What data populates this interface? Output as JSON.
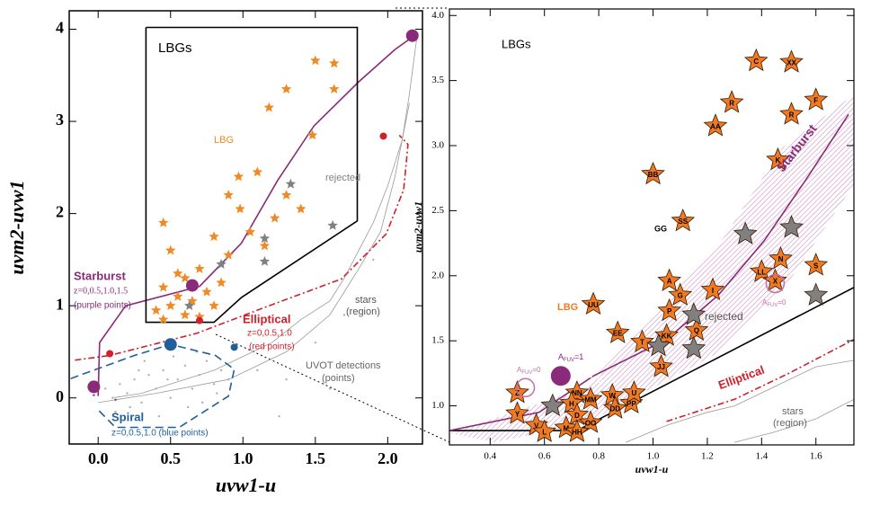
{
  "chart_data": [
    {
      "type": "scatter",
      "xlabel": "uvw1-u",
      "ylabel": "uvm2-uvw1",
      "xlim": [
        -0.2,
        2.24
      ],
      "ylim": [
        -0.5,
        4.2
      ],
      "xticks": [
        {
          "value": 0,
          "label": "0.0"
        },
        0.5,
        {
          "value": 1,
          "label": "1.0"
        },
        1.5,
        {
          "value": 2,
          "label": "2.0"
        }
      ],
      "yticks": [
        0,
        1,
        2,
        3,
        4
      ],
      "annotations": [
        "LBGs",
        "LBG",
        "rejected",
        "Starburst",
        "z=0,0.5,1.0,1.5",
        "(purple points)",
        "Elliptical",
        "z=0,0.5,1.0",
        "(red points)",
        "Spiral",
        "z=0,0.5,1.0 (blue points)",
        "stars",
        "(region)",
        "UVOT detections",
        "(points)"
      ],
      "series": [
        {
          "style": "line",
          "color": "#9a9a9a",
          "x": [
            0.1,
            0.3,
            0.5,
            0.8,
            1.0,
            1.2,
            1.4,
            1.6,
            1.7,
            1.8,
            1.9,
            2.0,
            2.1,
            2.15,
            2.2
          ],
          "y": [
            0.0,
            0.05,
            0.15,
            0.3,
            0.45,
            0.6,
            0.85,
            1.05,
            1.3,
            1.6,
            1.9,
            2.3,
            2.8,
            3.3,
            3.9
          ]
        },
        {
          "style": "line",
          "color": "#9a9a9a",
          "x": [
            0.0,
            0.4,
            0.9,
            1.3,
            1.6,
            1.8,
            1.95,
            2.05,
            2.15
          ],
          "y": [
            -0.05,
            0.05,
            0.2,
            0.5,
            0.9,
            1.4,
            1.8,
            2.4,
            3.2
          ]
        },
        {
          "style": "dot",
          "color": "#b0b0b0",
          "x": [
            0.05,
            0.1,
            0.15,
            0.2,
            0.25,
            0.3,
            0.35,
            0.4,
            0.45,
            0.5,
            0.55,
            0.6,
            0.65,
            0.7,
            0.75,
            0.8,
            0.85,
            0.9,
            0.12,
            0.22,
            0.32,
            0.42,
            0.52,
            0.62,
            0.72,
            0.82,
            0.28,
            0.48,
            0.68,
            1.1,
            1.3,
            1.5,
            1.7,
            1.9,
            1.25,
            1.6
          ],
          "y": [
            0.1,
            0.0,
            0.15,
            0.05,
            0.2,
            -0.05,
            0.25,
            0.1,
            0.3,
            0.0,
            0.2,
            0.35,
            0.1,
            0.25,
            0.4,
            0.15,
            0.3,
            0.2,
            -0.15,
            -0.1,
            0.4,
            -0.2,
            0.45,
            -0.1,
            -0.05,
            0.05,
            0.3,
            0.2,
            0.5,
            0.3,
            0.2,
            0.6,
            0.9,
            1.5,
            -0.2,
            0.1
          ]
        },
        {
          "style": "dashed",
          "color": "#1f5f9a",
          "x": [
            -0.19,
            0.25,
            0.5,
            0.81,
            0.94,
            0.9,
            0.56,
            0.12,
            0.0
          ],
          "y": [
            0.21,
            0.46,
            0.58,
            0.46,
            0.31,
            0.02,
            -0.32,
            -0.32,
            -0.13
          ]
        },
        {
          "style": "dashdot",
          "color": "#d0202a",
          "x": [
            -0.16,
            0.08,
            0.68,
            1.18,
            1.68,
            1.99,
            2.11,
            2.14,
            2.08
          ],
          "y": [
            0.41,
            0.46,
            0.7,
            1.0,
            1.29,
            1.78,
            2.26,
            2.75,
            2.85
          ]
        },
        {
          "style": "line",
          "color": "#8a2a7a",
          "x": [
            0.0,
            0.01,
            0.19,
            0.7,
            0.99,
            1.24,
            1.49,
            1.8,
            2.05,
            2.21
          ],
          "y": [
            0.02,
            0.6,
            1.0,
            1.21,
            1.68,
            2.36,
            2.95,
            3.43,
            3.78,
            3.96
          ]
        },
        {
          "style": "line",
          "color": "#000000",
          "x": [
            0.33,
            1.79,
            1.79,
            0.99,
            0.8,
            0.33,
            0.33
          ],
          "y": [
            4.02,
            4.02,
            1.92,
            1.09,
            0.82,
            0.82,
            4.02
          ]
        },
        {
          "style": "star",
          "color": "#f08a24",
          "x": [
            1.5,
            1.63,
            1.3,
            1.63,
            1.18,
            1.48,
            0.97,
            1.1,
            0.9,
            1.3,
            1.4,
            0.98,
            1.22,
            0.45,
            1.05,
            0.8,
            1.15,
            0.5,
            0.9,
            0.7,
            0.55,
            0.6,
            0.85,
            0.45,
            0.75,
            0.55,
            0.65,
            0.5,
            0.8,
            0.4,
            0.6,
            0.45,
            0.7
          ],
          "y": [
            3.66,
            3.63,
            3.35,
            3.35,
            3.15,
            2.85,
            2.4,
            2.45,
            2.2,
            2.2,
            2.05,
            2.05,
            1.95,
            1.9,
            1.8,
            1.75,
            1.65,
            1.6,
            1.55,
            1.4,
            1.35,
            1.3,
            1.25,
            1.2,
            1.15,
            1.1,
            1.05,
            1.0,
            1.0,
            0.95,
            0.9,
            0.85,
            0.88
          ]
        },
        {
          "style": "star",
          "color": "#808080",
          "x": [
            1.33,
            1.62,
            1.15,
            1.15,
            0.85,
            0.63
          ],
          "y": [
            2.32,
            1.87,
            1.73,
            1.48,
            1.45,
            1.0
          ]
        },
        {
          "style": "circle",
          "color": "#8a2a7a",
          "x": [
            -0.03,
            0.65,
            2.17
          ],
          "y": [
            0.12,
            1.22,
            3.93
          ]
        },
        {
          "style": "dot",
          "color": "#8a2a7a",
          "x": [
            -0.03,
            0.12
          ],
          "y": [
            0.03,
            -0.02
          ]
        },
        {
          "style": "smallcircle",
          "color": "#d0202a",
          "x": [
            0.08,
            0.7,
            1.97
          ],
          "y": [
            0.48,
            0.84,
            2.84
          ]
        },
        {
          "style": "circle",
          "color": "#1f5f9a",
          "x": [
            0.5
          ],
          "y": [
            0.58
          ]
        },
        {
          "style": "smallcircle",
          "color": "#1f5f9a",
          "x": [
            0.94
          ],
          "y": [
            0.55
          ]
        }
      ]
    },
    {
      "type": "scatter",
      "xlabel": "uvw1-u",
      "ylabel": "uvm2-uvw1",
      "xlim": [
        0.25,
        1.74
      ],
      "ylim": [
        0.7,
        4.05
      ],
      "xticks": [
        0.4,
        0.6,
        0.8,
        {
          "value": 1,
          "label": "1.0"
        },
        1.2,
        1.4,
        1.6
      ],
      "yticks": [
        {
          "value": 1,
          "label": "1.0"
        },
        1.5,
        {
          "value": 2,
          "label": "2.0"
        },
        2.5,
        {
          "value": 3,
          "label": "3.0"
        },
        3.5,
        {
          "value": 4,
          "label": "4.0"
        }
      ],
      "annotations": [
        "LBGs",
        "LBG",
        "rejected",
        "Starburst",
        "Elliptical",
        "stars",
        "(region)",
        "1.5",
        "GG",
        "A",
        "FUV",
        "=1",
        "A",
        "FUV",
        "=0",
        "A",
        "FUV",
        "=0"
      ],
      "series": [
        {
          "style": "line",
          "color": "#9a9a9a",
          "x": [
            0.9,
            1.05,
            1.2,
            1.3,
            1.4,
            1.5,
            1.6,
            1.74
          ],
          "y": [
            0.72,
            0.85,
            0.95,
            1.0,
            1.1,
            1.2,
            1.3,
            1.35
          ]
        },
        {
          "style": "line",
          "color": "#9a9a9a",
          "x": [
            1.3,
            1.45,
            1.6,
            1.74
          ],
          "y": [
            0.72,
            0.8,
            0.9,
            1.05
          ]
        },
        {
          "style": "dashdot",
          "color": "#d0202a",
          "x": [
            1.05,
            1.3,
            1.5,
            1.74
          ],
          "y": [
            0.88,
            1.05,
            1.25,
            1.51
          ]
        },
        {
          "style": "line",
          "color": "#000000",
          "x": [
            0.25,
            0.72,
            1.74
          ],
          "y": [
            0.81,
            0.81,
            1.91
          ]
        },
        {
          "style": "line",
          "color": "#8a2a7a",
          "x": [
            0.25,
            0.58,
            0.78,
            1.05,
            1.24,
            1.41,
            1.57,
            1.72
          ],
          "y": [
            0.81,
            0.95,
            1.23,
            1.51,
            1.85,
            2.27,
            2.76,
            3.24
          ]
        },
        {
          "style": "star",
          "color": "#f07a24",
          "x": [
            1.38,
            1.51,
            1.29,
            1.51,
            1.6,
            1.23,
            1.46,
            1.0,
            1.11,
            1.47,
            1.4,
            1.45,
            1.6,
            1.22,
            1.06,
            1.1,
            1.06,
            0.78,
            0.87,
            0.96,
            1.05,
            1.16,
            1.03,
            0.5,
            0.5,
            0.72,
            0.77,
            0.7,
            0.72,
            0.85,
            0.86,
            0.68,
            0.77,
            0.72,
            0.57,
            0.6,
            0.92,
            0.93
          ],
          "y": [
            3.65,
            3.64,
            3.33,
            3.24,
            3.35,
            3.15,
            2.89,
            2.78,
            2.42,
            2.13,
            2.03,
            1.96,
            2.08,
            1.89,
            1.96,
            1.85,
            1.73,
            1.78,
            1.56,
            1.49,
            1.54,
            1.58,
            1.3,
            1.1,
            0.94,
            1.1,
            1.05,
            1.02,
            0.93,
            1.08,
            0.98,
            0.83,
            0.87,
            0.8,
            0.85,
            0.8,
            1.02,
            1.1
          ],
          "labels": [
            "C",
            "XX",
            "R",
            "R",
            "F",
            "AA",
            "K",
            "BB",
            "SS",
            "N",
            "LL",
            "X",
            "S",
            "I",
            "A",
            "G",
            "P",
            "UU",
            "EE",
            "T",
            "KK",
            "Q",
            "JJ",
            "Z",
            "Y",
            "NN",
            "MM",
            "H",
            "D",
            "W",
            "DD",
            "M",
            "OO",
            "HH",
            "V",
            "L",
            "PP",
            "U"
          ]
        },
        {
          "style": "star",
          "color": "#808080",
          "x": [
            1.34,
            1.51,
            1.15,
            1.02,
            1.15,
            1.6,
            0.63
          ],
          "y": [
            2.32,
            2.37,
            1.7,
            1.46,
            1.44,
            1.85,
            1.0
          ]
        },
        {
          "style": "circle",
          "color": "#8a2a7a",
          "x": [
            0.66
          ],
          "y": [
            1.23
          ]
        },
        {
          "style": "ring",
          "color": "#c070a8",
          "x": [
            0.53,
            1.45
          ],
          "y": [
            1.14,
            1.94
          ]
        }
      ]
    }
  ]
}
